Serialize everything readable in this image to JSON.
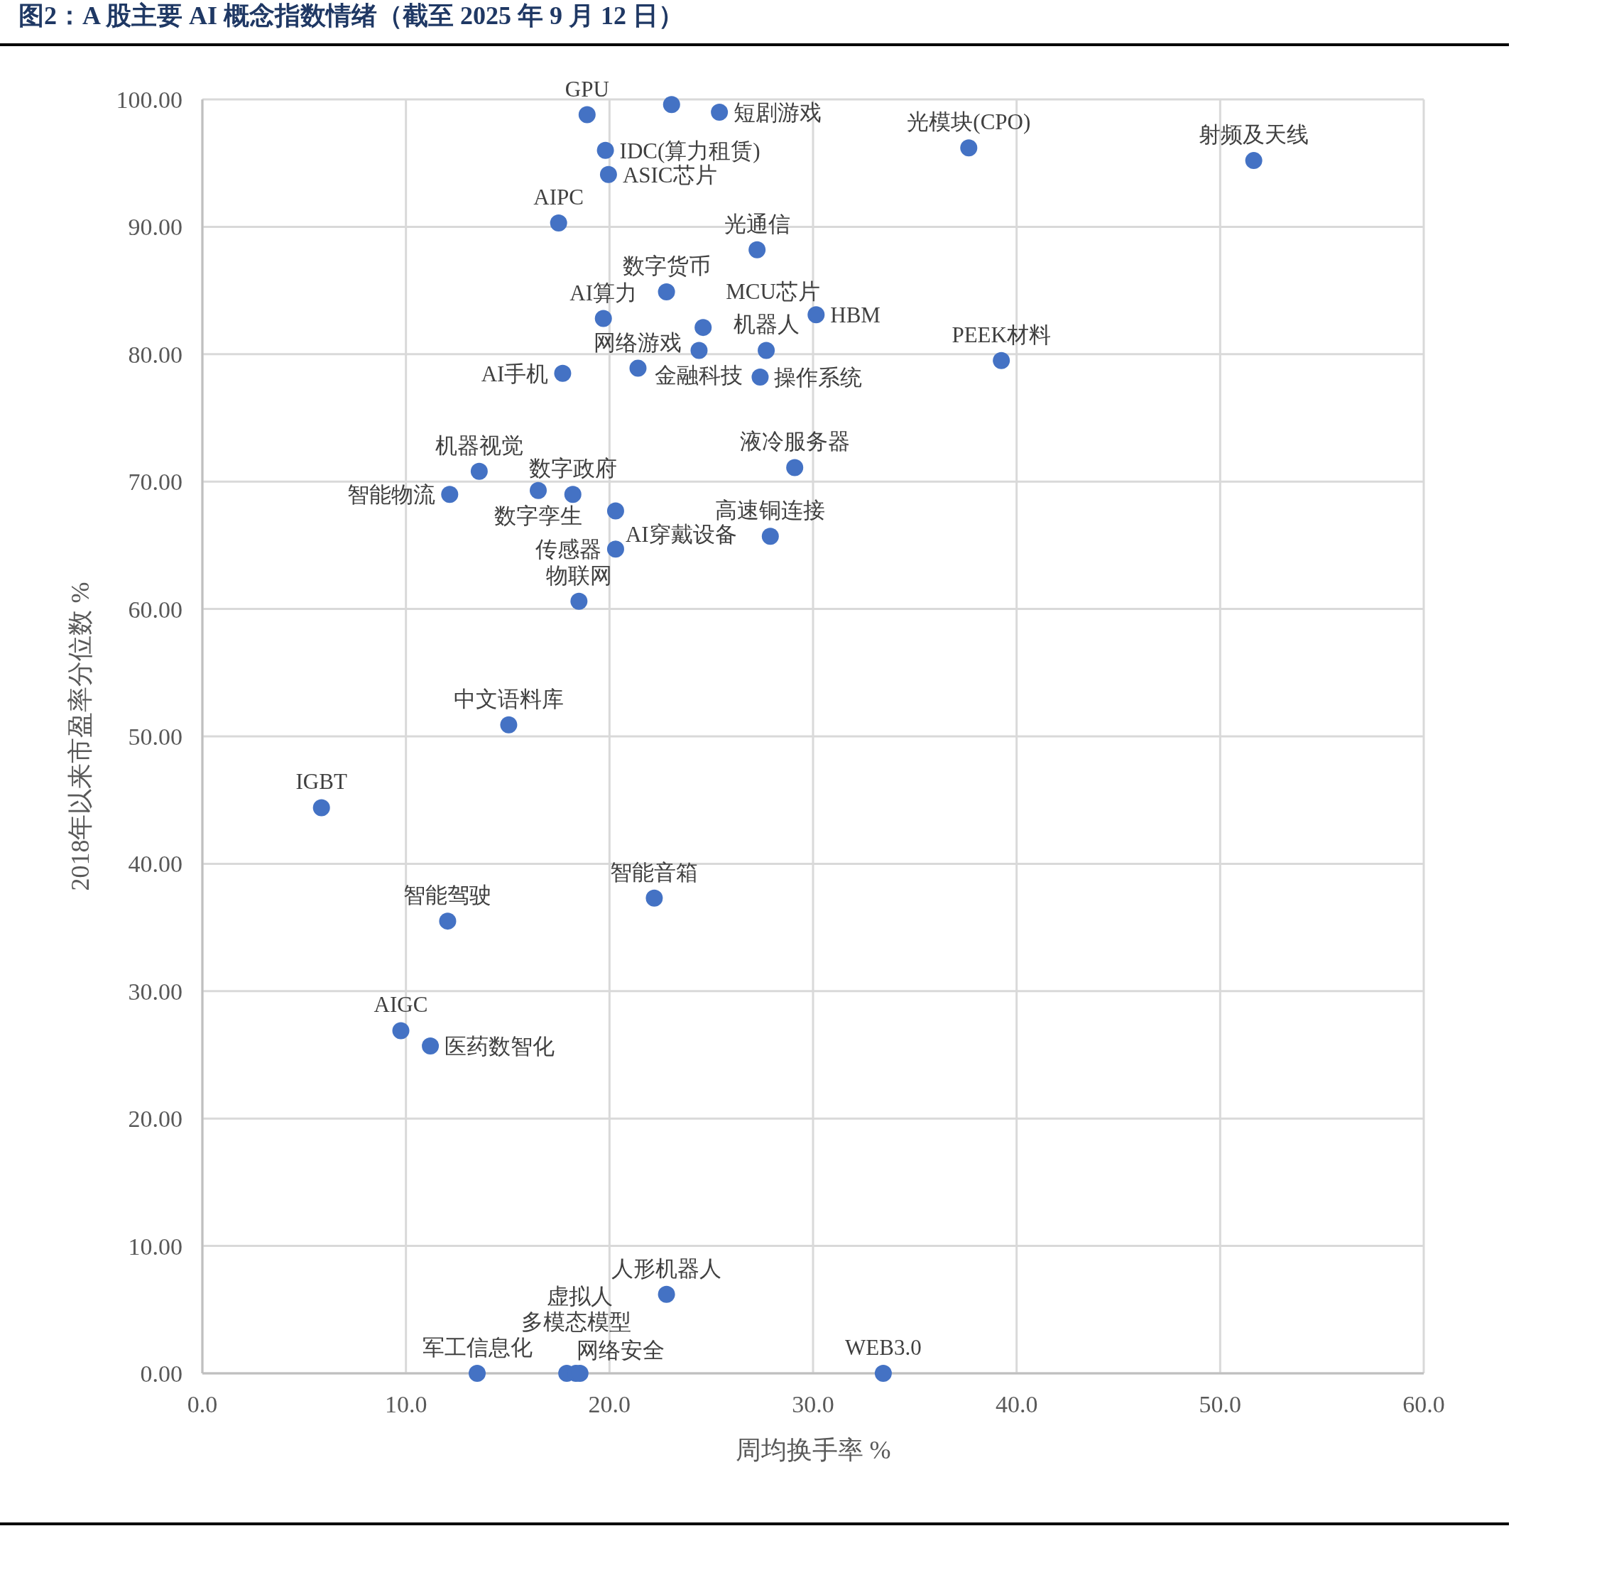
{
  "chart_data": {
    "type": "scatter",
    "title": "图2：A 股主要 AI 概念指数情绪（截至 2025 年 9 月 12 日）",
    "xlabel": "周均换手率 %",
    "ylabel": "2018年以来市盈率分位数 %",
    "color": "#4472c4",
    "marker": "circle",
    "grid": true,
    "xlim": [
      0,
      60
    ],
    "ylim": [
      0,
      100
    ],
    "xticks": [
      {
        "value": 0,
        "label": "0.0"
      },
      {
        "value": 10,
        "label": "10.0"
      },
      {
        "value": 20,
        "label": "20.0"
      },
      {
        "value": 30,
        "label": "30.0"
      },
      {
        "value": 40,
        "label": "40.0"
      },
      {
        "value": 50,
        "label": "50.0"
      },
      {
        "value": 60,
        "label": "60.0"
      }
    ],
    "yticks": [
      {
        "value": 0,
        "label": "0.00"
      },
      {
        "value": 10,
        "label": "10.00"
      },
      {
        "value": 20,
        "label": "20.00"
      },
      {
        "value": 30,
        "label": "30.00"
      },
      {
        "value": 40,
        "label": "40.00"
      },
      {
        "value": 50,
        "label": "50.00"
      },
      {
        "value": 60,
        "label": "60.00"
      },
      {
        "value": 70,
        "label": "70.00"
      },
      {
        "value": 80,
        "label": "80.00"
      },
      {
        "value": 90,
        "label": "90.00"
      },
      {
        "value": 100,
        "label": "100.00"
      }
    ],
    "x": [
      18.9,
      23.05,
      25.4,
      19.8,
      19.95,
      17.5,
      27.25,
      22.8,
      19.7,
      24.6,
      24.4,
      30.15,
      27.7,
      27.4,
      21.4,
      17.7,
      37.65,
      51.65,
      39.25,
      29.1,
      27.9,
      13.6,
      12.15,
      16.5,
      18.2,
      20.3,
      20.3,
      18.5,
      15.05,
      5.85,
      22.2,
      12.05,
      9.75,
      11.2,
      22.8,
      13.5,
      17.9,
      18.35,
      18.55,
      33.45
    ],
    "values": [
      98.8,
      99.6,
      99.0,
      96.0,
      94.1,
      90.3,
      88.2,
      84.9,
      82.8,
      82.1,
      80.3,
      83.1,
      80.3,
      78.2,
      78.9,
      78.5,
      96.2,
      95.2,
      79.5,
      71.1,
      65.7,
      70.8,
      69.0,
      69.3,
      69.0,
      67.7,
      64.7,
      60.6,
      50.9,
      44.4,
      37.3,
      35.5,
      26.9,
      25.7,
      6.2,
      0,
      0,
      0,
      0,
      0
    ],
    "value_labels": [
      "GPU",
      null,
      "短剧游戏",
      "IDC(算力租赁)",
      "ASIC芯片",
      "AIPC",
      "光通信",
      "数字货币",
      "AI算力",
      "MCU芯片",
      "金融科技",
      "HBM",
      "机器人",
      "操作系统",
      "网络游戏",
      "AI手机",
      "光模块(CPO)",
      "射频及天线",
      "PEEK材料",
      "液冷服务器",
      "高速铜连接",
      "机器视觉",
      "智能物流",
      "数字孪生",
      "数字政府",
      "AI穿戴设备",
      "传感器",
      "物联网",
      "中文语料库",
      "IGBT",
      "智能音箱",
      "智能驾驶",
      "AIGC",
      "医药数智化",
      "人形机器人",
      "军工信息化",
      "网络安全",
      "多模态模型",
      "虚拟人",
      "WEB3.0"
    ]
  }
}
